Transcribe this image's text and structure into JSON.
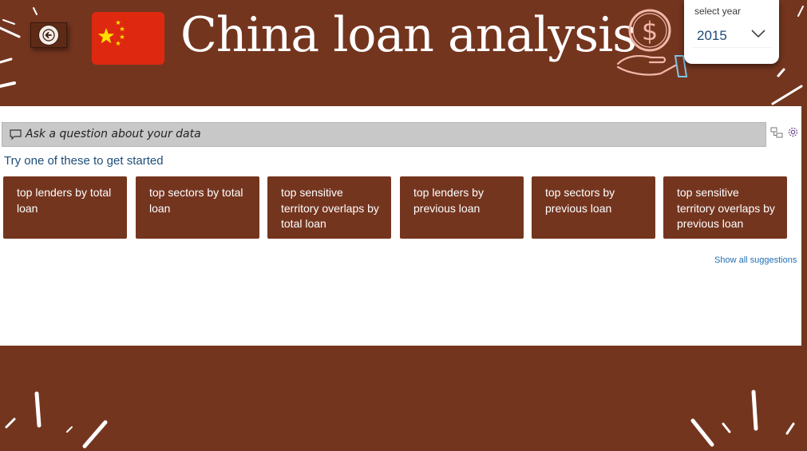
{
  "header": {
    "title": "China loan analysis",
    "back_icon": "back-arrow-icon",
    "flag_icon": "china-flag-icon",
    "money_icon": "dollar-hand-icon"
  },
  "year_slicer": {
    "label": "select year",
    "value": "2015",
    "chevron_icon": "chevron-down-icon"
  },
  "qa": {
    "placeholder": "Ask a question about your data",
    "prompt": "Try one of these to get started",
    "suggestions": [
      "top lenders by total loan",
      "top sectors by total loan",
      "top sensitive territory overlaps by total loan",
      "top lenders by previous loan",
      "top sectors by previous loan",
      "top sensitive territory overlaps by previous loan"
    ],
    "show_all": "Show all suggestions"
  },
  "colors": {
    "brand": "#74351f",
    "flag_red": "#de2910",
    "flag_star": "#ffde00",
    "link": "#1f6fb5"
  }
}
